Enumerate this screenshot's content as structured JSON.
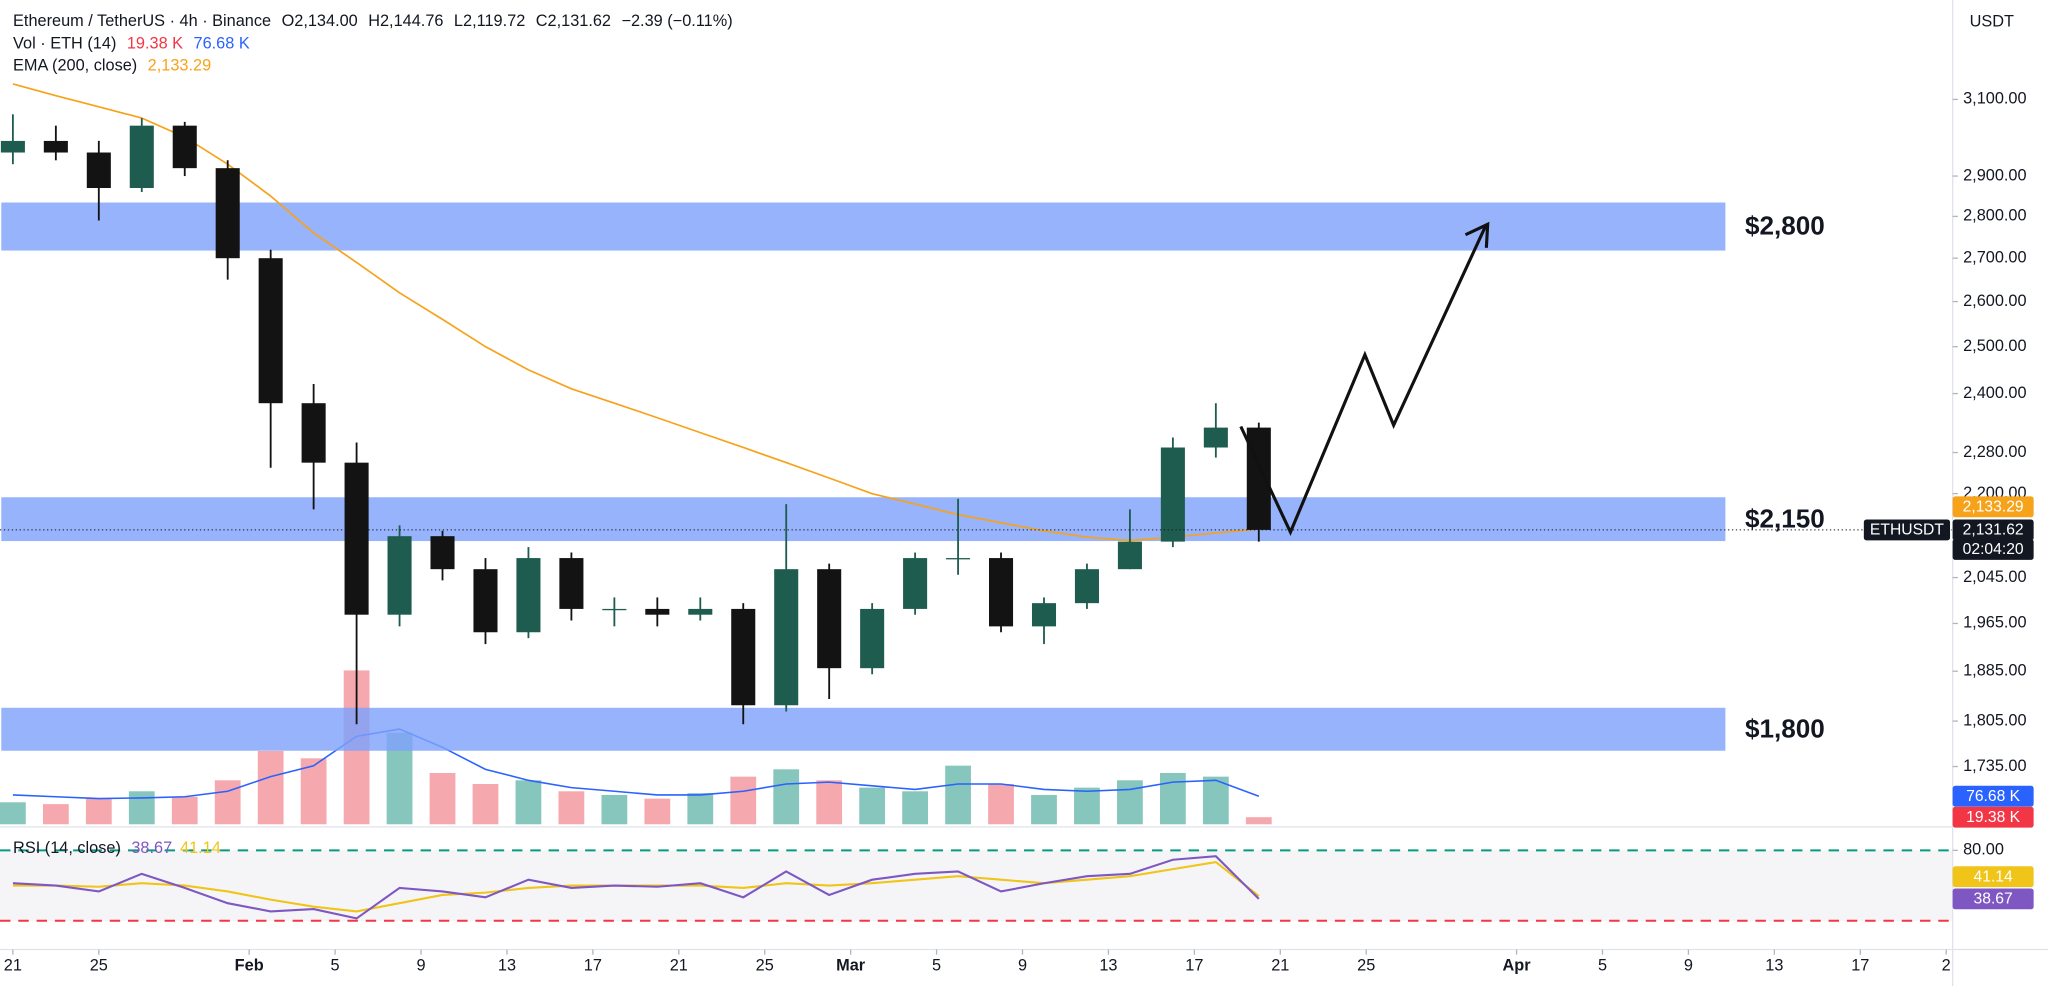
{
  "chart_data": {
    "type": "candlestick",
    "title": "Ethereum / TetherUS · 4h · Binance",
    "ohlc": [
      {
        "name": "O",
        "text": "2,134.00"
      },
      {
        "name": "H",
        "text": "2,144.76"
      },
      {
        "name": "L",
        "text": "2,119.72"
      },
      {
        "name": "C",
        "text": "2,131.62"
      }
    ],
    "change": "−2.39 (−0.11%)",
    "currency": "USDT",
    "log_scale": true,
    "up_color": "#1f5c50",
    "down_color": "#131313",
    "x": [
      0,
      2,
      4,
      6,
      8,
      10,
      12,
      14,
      16,
      18,
      20,
      22,
      24,
      26,
      28,
      30,
      32,
      34,
      36,
      38,
      40,
      42,
      44,
      46,
      48,
      50,
      52,
      54,
      56,
      58
    ],
    "open": [
      2960,
      2990,
      2960,
      2870,
      3030,
      2920,
      2700,
      2380,
      2260,
      1980,
      2120,
      2060,
      1950,
      2080,
      1990,
      1990,
      1980,
      1990,
      1830,
      2060,
      1890,
      1990,
      2080,
      2080,
      1960,
      2000,
      2060,
      2110,
      2290,
      2330
    ],
    "high": [
      3060,
      3030,
      2990,
      3050,
      3040,
      2940,
      2720,
      2420,
      2300,
      2140,
      2130,
      2080,
      2100,
      2090,
      2010,
      2010,
      2010,
      2000,
      2180,
      2070,
      2000,
      2090,
      2190,
      2090,
      2010,
      2070,
      2170,
      2310,
      2380,
      2340
    ],
    "low": [
      2930,
      2940,
      2790,
      2860,
      2900,
      2650,
      2250,
      2170,
      1800,
      1960,
      2040,
      1930,
      1940,
      1970,
      1960,
      1960,
      1970,
      1800,
      1820,
      1840,
      1880,
      1980,
      2050,
      1950,
      1930,
      1990,
      2060,
      2100,
      2270,
      2110
    ],
    "close": [
      2990,
      2960,
      2870,
      3030,
      2920,
      2700,
      2380,
      2260,
      1980,
      2120,
      2060,
      1950,
      2080,
      1990,
      1990,
      1980,
      1990,
      1830,
      2060,
      1890,
      1990,
      2080,
      2080,
      1960,
      2000,
      2060,
      2110,
      2290,
      2330,
      2131.62
    ],
    "xlim": [
      -0.6,
      90.3
    ],
    "xticks": [
      {
        "value": 0,
        "label": "21"
      },
      {
        "value": 4,
        "label": "25"
      },
      {
        "value": 11,
        "label": "Feb"
      },
      {
        "value": 15,
        "label": "5"
      },
      {
        "value": 19,
        "label": "9"
      },
      {
        "value": 23,
        "label": "13"
      },
      {
        "value": 27,
        "label": "17"
      },
      {
        "value": 31,
        "label": "21"
      },
      {
        "value": 35,
        "label": "25"
      },
      {
        "value": 39,
        "label": "Mar"
      },
      {
        "value": 43,
        "label": "5"
      },
      {
        "value": 47,
        "label": "9"
      },
      {
        "value": 51,
        "label": "13"
      },
      {
        "value": 55,
        "label": "17"
      },
      {
        "value": 59,
        "label": "21"
      },
      {
        "value": 63,
        "label": "25"
      },
      {
        "value": 70,
        "label": "Apr"
      },
      {
        "value": 74,
        "label": "5"
      },
      {
        "value": 78,
        "label": "9"
      },
      {
        "value": 82,
        "label": "13"
      },
      {
        "value": 86,
        "label": "17"
      },
      {
        "value": 90,
        "label": "2"
      }
    ],
    "ylim": [
      1650,
      3380
    ],
    "yticks": [
      {
        "value": 3100,
        "label": "3,100.00"
      },
      {
        "value": 2900,
        "label": "2,900.00"
      },
      {
        "value": 2800,
        "label": "2,800.00"
      },
      {
        "value": 2700,
        "label": "2,700.00"
      },
      {
        "value": 2600,
        "label": "2,600.00"
      },
      {
        "value": 2500,
        "label": "2,500.00"
      },
      {
        "value": 2400,
        "label": "2,400.00"
      },
      {
        "value": 2280,
        "label": "2,280.00"
      },
      {
        "value": 2200,
        "label": "2,200.00"
      },
      {
        "value": 2045,
        "label": "2,045.00"
      },
      {
        "value": 1965,
        "label": "1,965.00"
      },
      {
        "value": 1885,
        "label": "1,885.00"
      },
      {
        "value": 1805,
        "label": "1,805.00"
      },
      {
        "value": 1735,
        "label": "1,735.00"
      }
    ],
    "price_line": {
      "symbol": "ETHUSDT",
      "label": "2,131.62",
      "countdown": "02:04:20"
    },
    "ema": {
      "name": "EMA (200, close)",
      "color": "#f7a21b",
      "last_label": "2,133.29",
      "values": [
        3142,
        3110,
        3080,
        3050,
        3000,
        2930,
        2850,
        2760,
        2690,
        2620,
        2560,
        2500,
        2450,
        2410,
        2380,
        2350,
        2320,
        2290,
        2260,
        2230,
        2200,
        2180,
        2160,
        2145,
        2130,
        2118,
        2112,
        2118,
        2126,
        2133.29
      ]
    },
    "zones": [
      {
        "low": 2718,
        "high": 2834,
        "label": "$2,800"
      },
      {
        "low": 2111,
        "high": 2193,
        "label": "$2,150"
      },
      {
        "low": 1759,
        "high": 1826,
        "label": "$1,800"
      }
    ],
    "zone_color": "#7fa2fb",
    "volume": {
      "name": "Vol · ETH (14)",
      "ylim": [
        0,
        2250
      ],
      "last_label": "19.38 K",
      "ma_last_label": "76.68 K",
      "up_color": "#5fb3a6",
      "down_color": "#f28b93",
      "ma_color": "#2962ff",
      "last_color": "#f23645",
      "values": [
        60,
        55,
        70,
        90,
        75,
        120,
        200,
        180,
        420,
        250,
        140,
        110,
        120,
        90,
        80,
        70,
        85,
        130,
        150,
        120,
        100,
        90,
        160,
        110,
        80,
        100,
        120,
        140,
        130,
        19.38
      ],
      "ma_values": [
        80,
        75,
        70,
        72,
        75,
        90,
        130,
        160,
        240,
        260,
        210,
        150,
        120,
        100,
        90,
        80,
        80,
        90,
        110,
        115,
        105,
        95,
        110,
        110,
        95,
        90,
        95,
        115,
        120,
        76.68
      ]
    },
    "rsi": {
      "name": "RSI (14, close)",
      "ylim": [
        0,
        100
      ],
      "yticks": [
        {
          "value": 80,
          "label": "80.00"
        }
      ],
      "color": "#7e57c2",
      "ma_color": "#f0c419",
      "last_label": "38.67",
      "ma_last_label": "41.14",
      "levels": [
        {
          "value": 80,
          "color": "#089981"
        },
        {
          "value": 20,
          "color": "#f23645"
        }
      ],
      "values": [
        52,
        50,
        45,
        60,
        48,
        35,
        28,
        30,
        22,
        48,
        45,
        40,
        55,
        48,
        50,
        49,
        52,
        40,
        62,
        42,
        55,
        60,
        62,
        45,
        52,
        58,
        60,
        72,
        75,
        38.67
      ],
      "ma_values": [
        50,
        50,
        49,
        52,
        50,
        45,
        38,
        32,
        28,
        35,
        42,
        44,
        48,
        50,
        50,
        50,
        50,
        48,
        52,
        50,
        52,
        55,
        58,
        55,
        52,
        55,
        58,
        64,
        70,
        41.14
      ]
    }
  }
}
